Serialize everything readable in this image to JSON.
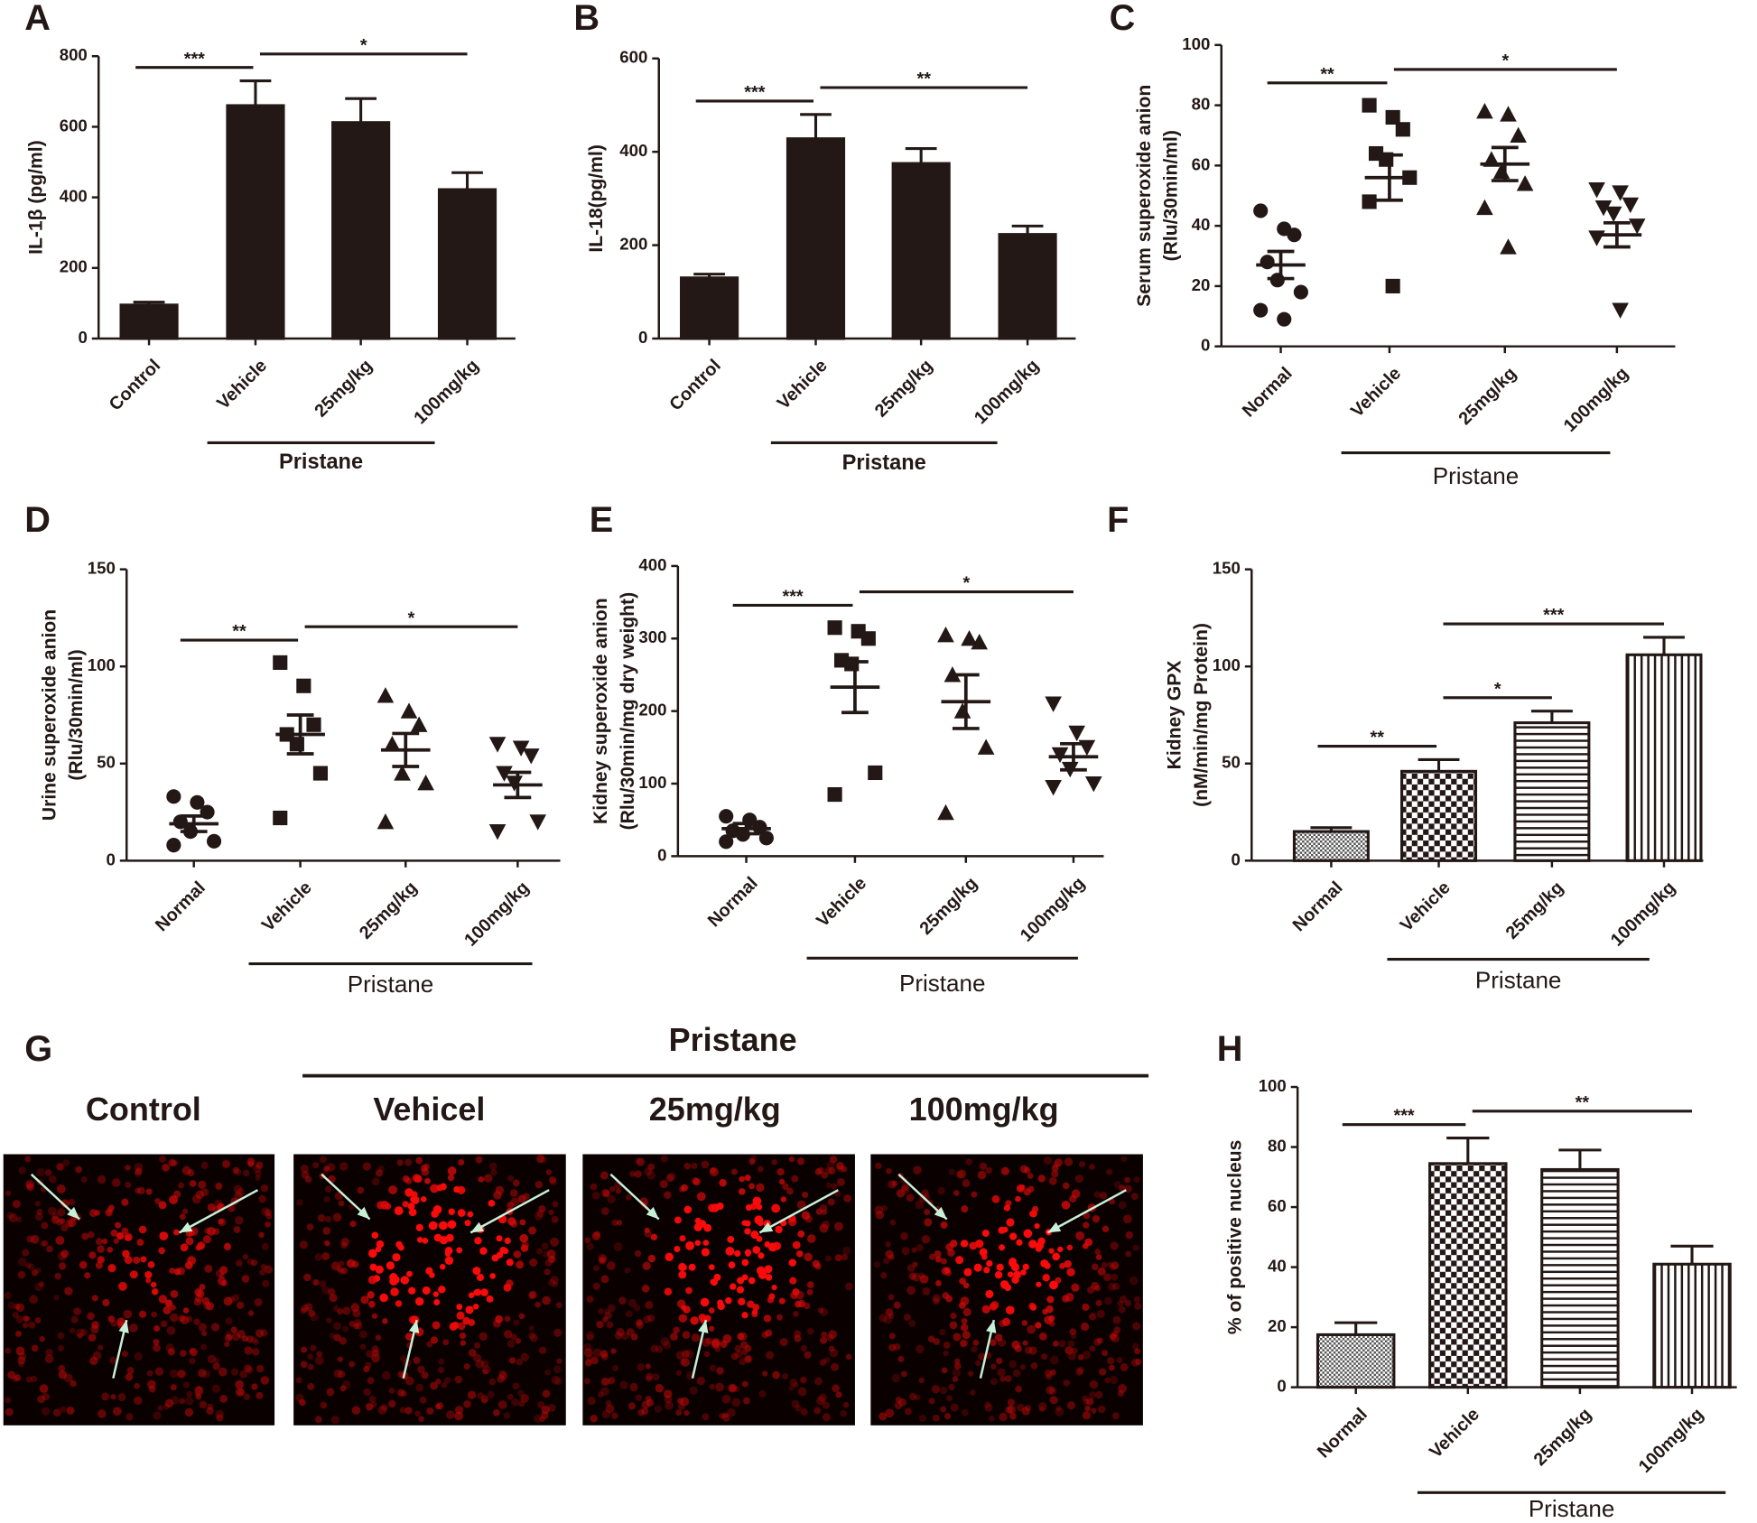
{
  "chart_data": [
    {
      "panel": "A",
      "type": "bar",
      "ylabel": [
        "IL-1β (pg/ml)"
      ],
      "categories": [
        "Control",
        "Vehicle",
        "25mg/kg",
        "100mg/kg"
      ],
      "values": [
        95,
        660,
        612,
        422
      ],
      "errors": [
        8,
        70,
        68,
        48
      ],
      "color": "#231815",
      "ylim": [
        0,
        800
      ],
      "yticks": [
        0,
        200,
        400,
        600,
        800
      ],
      "group_label": "Pristane",
      "significance": [
        {
          "from": 0,
          "to": 1,
          "label": "***"
        },
        {
          "from": 1,
          "to": 3,
          "label": "*"
        }
      ]
    },
    {
      "panel": "B",
      "type": "bar",
      "ylabel": [
        "IL-18(pg/ml)"
      ],
      "categories": [
        "Control",
        "Vehicle",
        "25mg/kg",
        "100mg/kg"
      ],
      "values": [
        130,
        428,
        375,
        223
      ],
      "errors": [
        8,
        52,
        32,
        18
      ],
      "color": "#231815",
      "ylim": [
        0,
        600
      ],
      "yticks": [
        0,
        200,
        400,
        600
      ],
      "group_label": "Pristane",
      "significance": [
        {
          "from": 0,
          "to": 1,
          "label": "***"
        },
        {
          "from": 1,
          "to": 3,
          "label": "**"
        }
      ]
    },
    {
      "panel": "C",
      "type": "scatter",
      "ylabel": [
        "Serum superoxide anion",
        "(Rlu/30min/ml)"
      ],
      "categories": [
        "Normal",
        "Vehicle",
        "25mg/kg",
        "100mg/kg"
      ],
      "points": [
        [
          45,
          39,
          37,
          28,
          22,
          18,
          12,
          9
        ],
        [
          80,
          76,
          72,
          64,
          62,
          56,
          48,
          20
        ],
        [
          78,
          77,
          70,
          62,
          58,
          54,
          46,
          33
        ],
        [
          52,
          51,
          47,
          46,
          44,
          40,
          36,
          12
        ]
      ],
      "means": [
        27,
        56,
        60.5,
        37
      ],
      "errors": [
        4.5,
        7.5,
        5.5,
        4
      ],
      "markers": [
        "circle",
        "square",
        "triangle",
        "triangle-down"
      ],
      "color": "#231815",
      "ylim": [
        0,
        100
      ],
      "yticks": [
        0,
        20,
        40,
        60,
        80,
        100
      ],
      "group_label": "Pristane",
      "significance": [
        {
          "from": 0,
          "to": 1,
          "label": "**"
        },
        {
          "from": 1,
          "to": 3,
          "label": "*"
        }
      ]
    },
    {
      "panel": "D",
      "type": "scatter",
      "ylabel": [
        "Urine superoxide anion",
        "(Rlu/30min/ml)"
      ],
      "categories": [
        "Normal",
        "Vehicle",
        "25mg/kg",
        "100mg/kg"
      ],
      "points": [
        [
          33,
          30,
          25,
          20,
          15,
          10,
          8
        ],
        [
          102,
          90,
          70,
          65,
          60,
          45,
          22
        ],
        [
          85,
          77,
          70,
          60,
          45,
          40,
          20
        ],
        [
          60,
          58,
          54,
          45,
          40,
          20,
          15
        ]
      ],
      "means": [
        19,
        65,
        57,
        39
      ],
      "errors": [
        4,
        10,
        8.5,
        6.5
      ],
      "markers": [
        "circle",
        "square",
        "triangle",
        "triangle-down"
      ],
      "color": "#231815",
      "ylim": [
        0,
        150
      ],
      "yticks": [
        0,
        50,
        100,
        150
      ],
      "group_label": "Pristane",
      "significance": [
        {
          "from": 0,
          "to": 1,
          "label": "**"
        },
        {
          "from": 1,
          "to": 3,
          "label": "*"
        }
      ]
    },
    {
      "panel": "E",
      "type": "scatter",
      "ylabel": [
        "Kidney superoxide anion",
        "(Rlu/30min/mg dry weight)"
      ],
      "categories": [
        "Normal",
        "Vehicle",
        "25mg/kg",
        "100mg/kg"
      ],
      "points": [
        [
          55,
          50,
          40,
          35,
          30,
          25,
          20
        ],
        [
          315,
          310,
          300,
          270,
          265,
          115,
          85
        ],
        [
          305,
          300,
          295,
          250,
          200,
          150,
          60
        ],
        [
          210,
          170,
          150,
          140,
          120,
          100,
          95
        ]
      ],
      "means": [
        38,
        233,
        213,
        137
      ],
      "errors": [
        7,
        35,
        37,
        18
      ],
      "markers": [
        "circle",
        "square",
        "triangle",
        "triangle-down"
      ],
      "color": "#231815",
      "ylim": [
        0,
        400
      ],
      "yticks": [
        0,
        100,
        200,
        300,
        400
      ],
      "group_label": "Pristane",
      "significance": [
        {
          "from": 0,
          "to": 1,
          "label": "***"
        },
        {
          "from": 1,
          "to": 3,
          "label": "*"
        }
      ]
    },
    {
      "panel": "F",
      "type": "bar",
      "ylabel": [
        "Kidney GPX",
        "(nM/min/mg Protein)"
      ],
      "categories": [
        "Normal",
        "Vehicle",
        "25mg/kg",
        "100mg/kg"
      ],
      "values": [
        15,
        46,
        71,
        106
      ],
      "errors": [
        2,
        6,
        6,
        9
      ],
      "color": "#231815",
      "patterns": [
        "dots",
        "checker",
        "hlines",
        "vlines"
      ],
      "ylim": [
        0,
        150
      ],
      "yticks": [
        0,
        50,
        100,
        150
      ],
      "group_label": "Pristane",
      "significance": [
        {
          "from": 0,
          "to": 1,
          "label": "**"
        },
        {
          "from": 1,
          "to": 2,
          "label": "*"
        },
        {
          "from": 1,
          "to": 3,
          "label": "***"
        }
      ]
    },
    {
      "panel": "H",
      "type": "bar",
      "ylabel": [
        "% of positive nucleus"
      ],
      "categories": [
        "Normal",
        "Vehicle",
        "25mg/kg",
        "100mg/kg"
      ],
      "values": [
        17.5,
        74.5,
        72.5,
        41
      ],
      "errors": [
        4,
        8.5,
        6.5,
        6
      ],
      "color": "#231815",
      "patterns": [
        "dots",
        "checker",
        "hlines",
        "vlines"
      ],
      "ylim": [
        0,
        100
      ],
      "yticks": [
        0,
        20,
        40,
        60,
        80,
        100
      ],
      "group_label": "Pristane",
      "significance": [
        {
          "from": 0,
          "to": 1,
          "label": "***"
        },
        {
          "from": 1,
          "to": 3,
          "label": "**"
        }
      ]
    }
  ],
  "image_panel": {
    "panel": "G",
    "group_label": "Pristane",
    "labels": [
      "Control",
      "Vehicel",
      "25mg/kg",
      "100mg/kg"
    ]
  }
}
